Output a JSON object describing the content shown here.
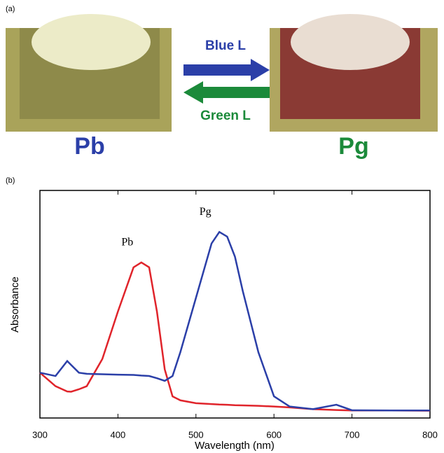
{
  "panel_a": {
    "label": "(a)",
    "arrow_top": "Blue L",
    "arrow_bottom": "Green L",
    "left_label": "Pb",
    "right_label": "Pg"
  },
  "chart_data": {
    "type": "line",
    "panel_label": "(b)",
    "x_label": "Wavelength (nm)",
    "y_label": "Absorbance",
    "x": [
      300,
      320,
      335,
      340,
      350,
      360,
      380,
      400,
      420,
      430,
      440,
      450,
      460,
      470,
      480,
      500,
      520,
      530,
      540,
      550,
      560,
      580,
      600,
      620,
      650,
      680,
      700,
      750,
      800
    ],
    "series": [
      {
        "name": "Pb",
        "color": "#e0242b",
        "values": [
          0.175,
          0.114,
          0.09,
          0.089,
          0.1,
          0.114,
          0.237,
          0.452,
          0.652,
          0.674,
          0.652,
          0.452,
          0.19,
          0.068,
          0.05,
          0.037,
          0.033,
          0.031,
          0.03,
          0.028,
          0.027,
          0.025,
          0.022,
          0.018,
          0.01,
          0.006,
          0.004,
          0.004,
          0.003
        ]
      },
      {
        "name": "Pg",
        "color": "#2b3fa8",
        "values": [
          0.175,
          0.16,
          0.228,
          0.21,
          0.175,
          0.17,
          0.168,
          0.166,
          0.165,
          0.162,
          0.16,
          0.15,
          0.138,
          0.16,
          0.268,
          0.514,
          0.76,
          0.812,
          0.791,
          0.7,
          0.545,
          0.268,
          0.068,
          0.022,
          0.01,
          0.03,
          0.005,
          0.004,
          0.004
        ]
      }
    ],
    "xlim": [
      300,
      800
    ],
    "xticks": [
      300,
      400,
      500,
      600,
      700,
      800
    ],
    "ylim": [
      -0.03,
      1
    ]
  }
}
